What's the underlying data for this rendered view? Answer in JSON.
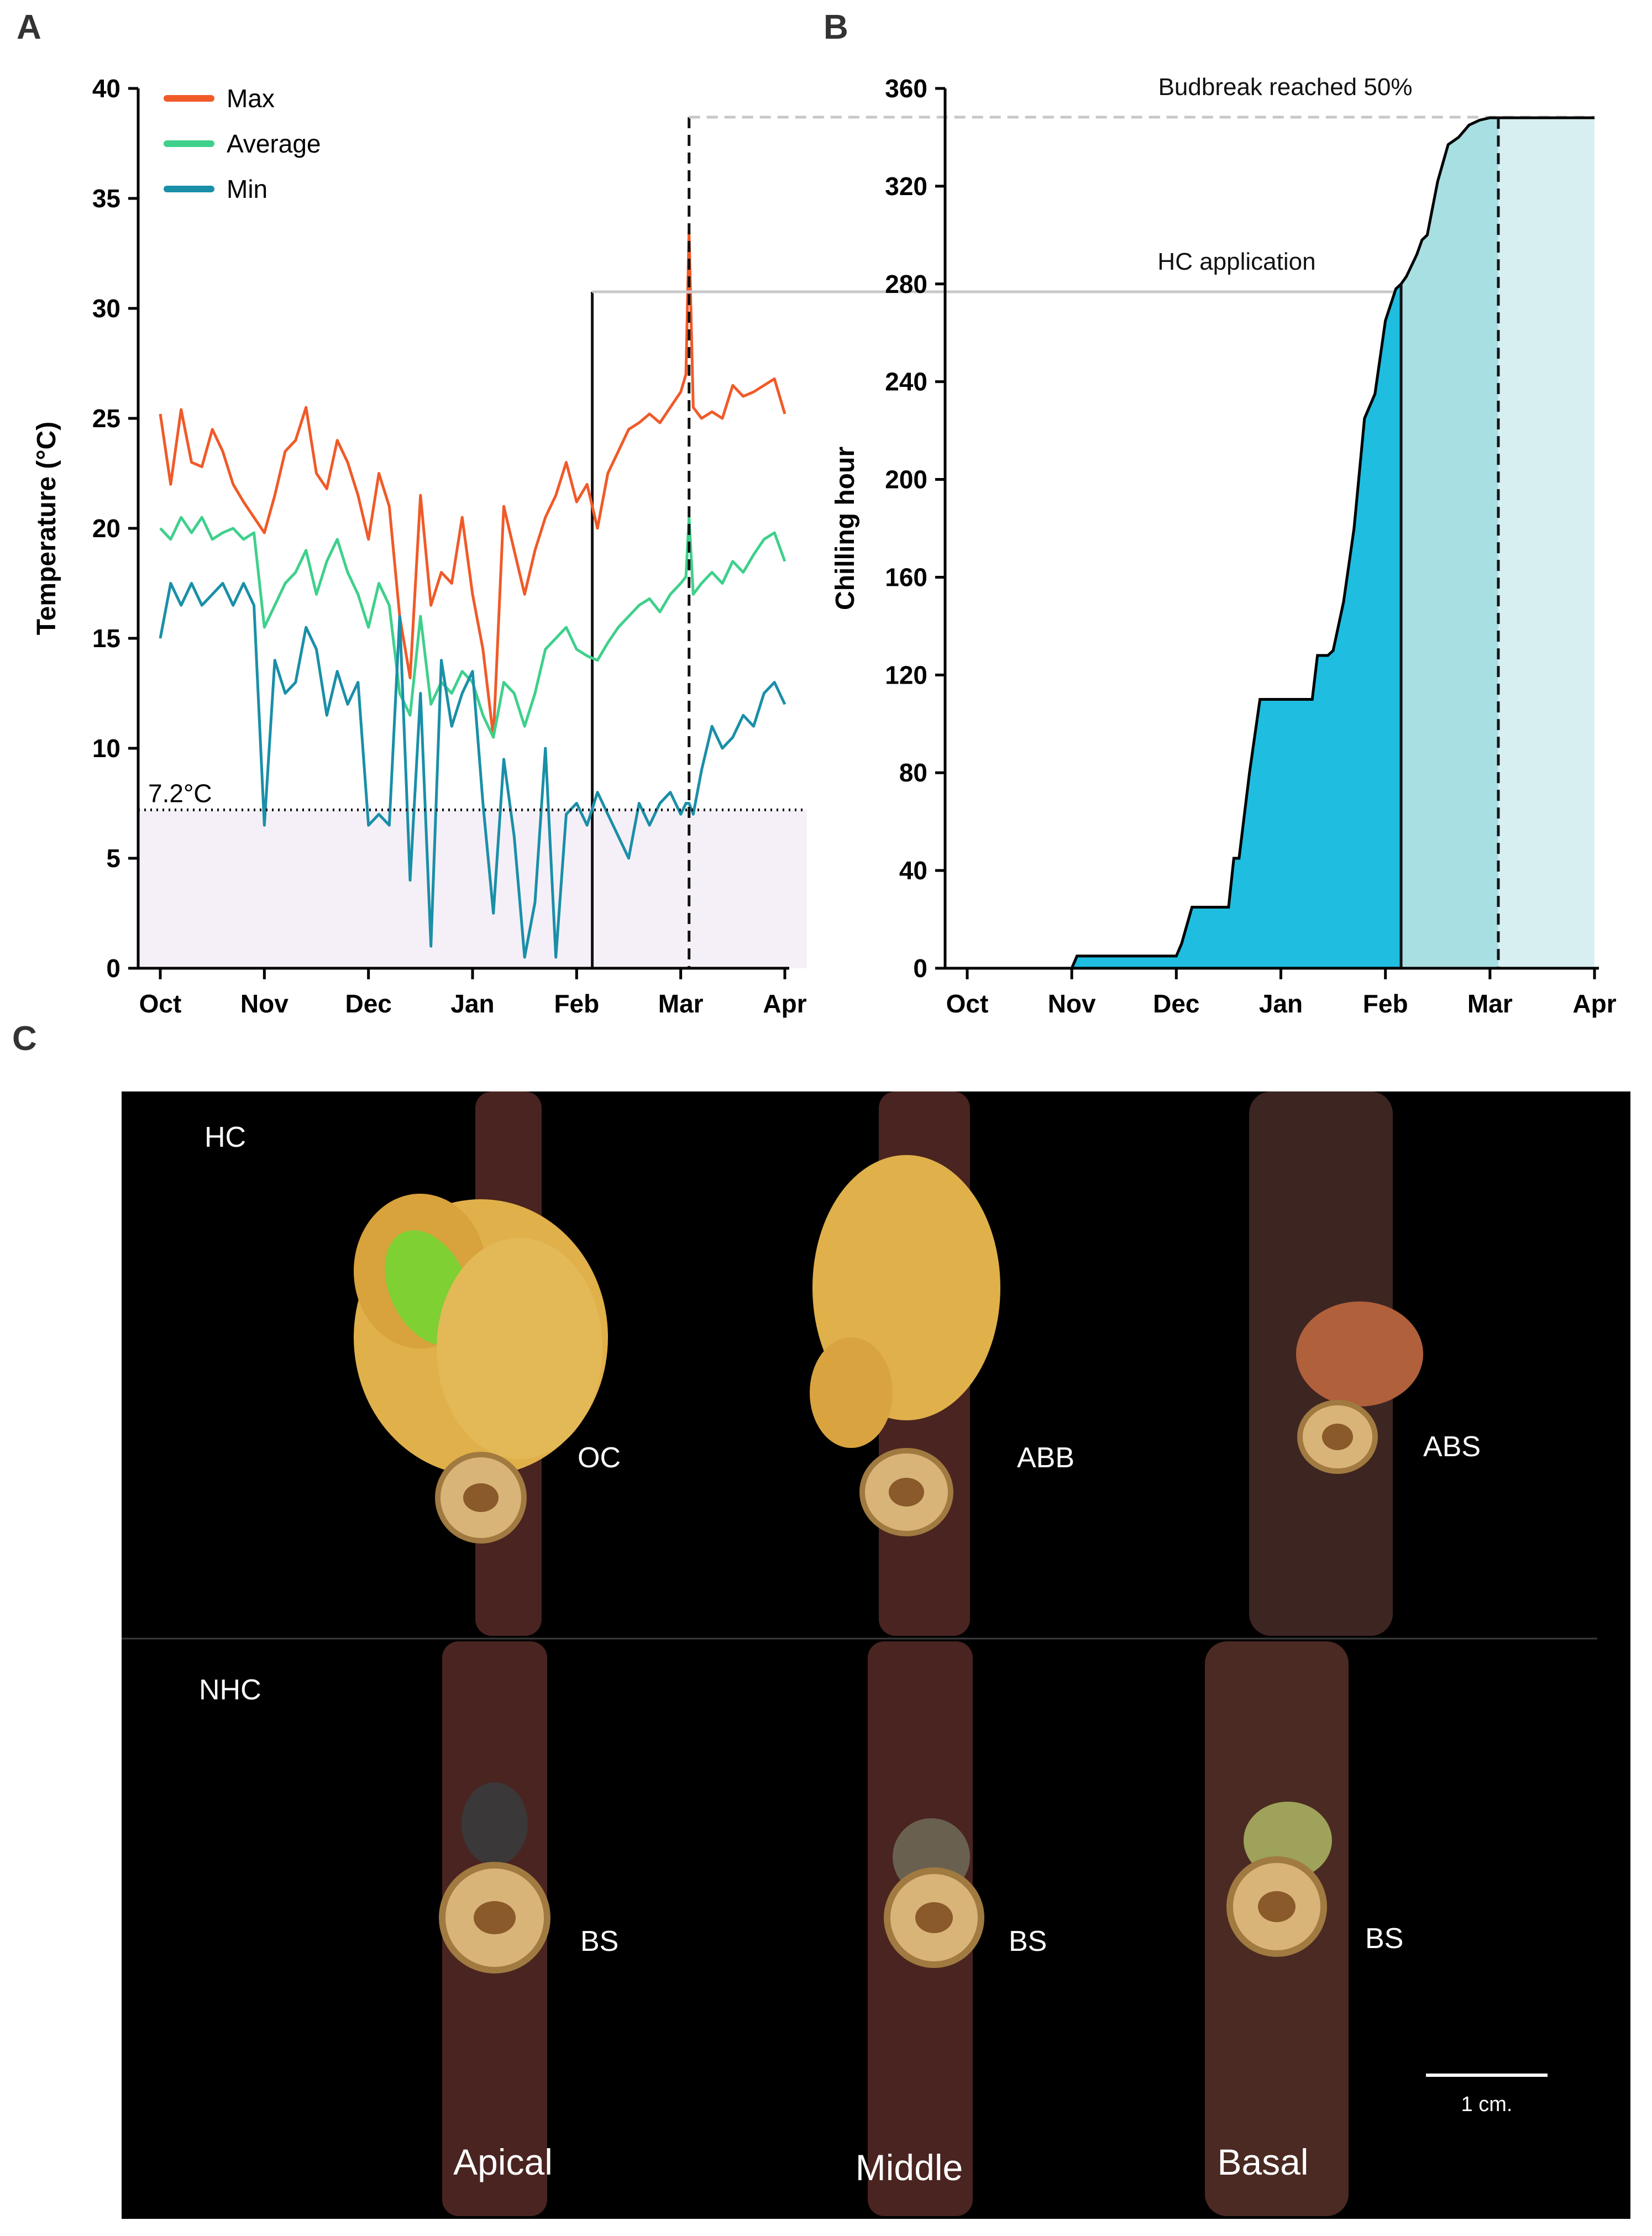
{
  "panels": {
    "a": "A",
    "b": "B",
    "c": "C"
  },
  "chart_data": [
    {
      "type": "line",
      "panel": "A",
      "ylabel": "Temperature (°C)",
      "xlabel": "",
      "ylim": [
        0,
        40
      ],
      "yticks": [
        "0",
        "5",
        "10",
        "15",
        "20",
        "25",
        "30",
        "35",
        "40"
      ],
      "xticks": [
        "Oct",
        "Nov",
        "Dec",
        "Jan",
        "Feb",
        "Mar",
        "Apr"
      ],
      "threshold": {
        "value": 7.2,
        "label": "7.2°C"
      },
      "markers": {
        "hc_application_month": 4.15,
        "budbreak_month": 5.08
      },
      "legend_position": "top-left",
      "colors": {
        "Max": "#f05a28",
        "Average": "#3fd08c",
        "Min": "#1a8fa8",
        "threshold_fill": "#f5f0f7"
      },
      "series": [
        {
          "name": "Max",
          "x": [
            0,
            0.1,
            0.2,
            0.3,
            0.4,
            0.5,
            0.6,
            0.7,
            0.8,
            0.9,
            1.0,
            1.1,
            1.2,
            1.3,
            1.4,
            1.5,
            1.6,
            1.7,
            1.8,
            1.9,
            2.0,
            2.1,
            2.2,
            2.3,
            2.4,
            2.5,
            2.6,
            2.7,
            2.8,
            2.9,
            3.0,
            3.1,
            3.2,
            3.3,
            3.4,
            3.5,
            3.6,
            3.7,
            3.8,
            3.9,
            4.0,
            4.1,
            4.2,
            4.3,
            4.4,
            4.5,
            4.6,
            4.7,
            4.8,
            4.9,
            5.0,
            5.05,
            5.08,
            5.12,
            5.2,
            5.3,
            5.4,
            5.5,
            5.6,
            5.7,
            5.8,
            5.9,
            6.0
          ],
          "values": [
            25.2,
            22.0,
            25.4,
            23.0,
            22.8,
            24.5,
            23.5,
            22.0,
            21.2,
            20.5,
            19.8,
            21.5,
            23.5,
            24.0,
            25.5,
            22.5,
            21.8,
            24.0,
            23.0,
            21.5,
            19.5,
            22.5,
            21.0,
            16.0,
            13.2,
            21.5,
            16.5,
            18.0,
            17.5,
            20.5,
            17.0,
            14.5,
            10.5,
            21.0,
            19.0,
            17.0,
            19.0,
            20.5,
            21.5,
            23.0,
            21.2,
            22.0,
            20.0,
            22.5,
            23.5,
            24.5,
            24.8,
            25.2,
            24.8,
            25.5,
            26.2,
            27.0,
            33.5,
            25.5,
            25.0,
            25.3,
            25.0,
            26.5,
            26.0,
            26.2,
            26.5,
            26.8,
            25.2
          ]
        },
        {
          "name": "Average",
          "x": [
            0,
            0.1,
            0.2,
            0.3,
            0.4,
            0.5,
            0.6,
            0.7,
            0.8,
            0.9,
            1.0,
            1.1,
            1.2,
            1.3,
            1.4,
            1.5,
            1.6,
            1.7,
            1.8,
            1.9,
            2.0,
            2.1,
            2.2,
            2.3,
            2.4,
            2.5,
            2.6,
            2.7,
            2.8,
            2.9,
            3.0,
            3.1,
            3.2,
            3.3,
            3.4,
            3.5,
            3.6,
            3.7,
            3.8,
            3.9,
            4.0,
            4.1,
            4.2,
            4.3,
            4.4,
            4.5,
            4.6,
            4.7,
            4.8,
            4.9,
            5.0,
            5.05,
            5.08,
            5.12,
            5.2,
            5.3,
            5.4,
            5.5,
            5.6,
            5.7,
            5.8,
            5.9,
            6.0
          ],
          "values": [
            20.0,
            19.5,
            20.5,
            19.8,
            20.5,
            19.5,
            19.8,
            20.0,
            19.5,
            19.8,
            15.5,
            16.5,
            17.5,
            18.0,
            19.0,
            17.0,
            18.5,
            19.5,
            18.0,
            17.0,
            15.5,
            17.5,
            16.5,
            12.5,
            11.5,
            16.0,
            12.0,
            13.0,
            12.5,
            13.5,
            13.0,
            11.5,
            10.5,
            13.0,
            12.5,
            11.0,
            12.5,
            14.5,
            15.0,
            15.5,
            14.5,
            14.2,
            14.0,
            14.8,
            15.5,
            16.0,
            16.5,
            16.8,
            16.2,
            17.0,
            17.5,
            17.8,
            20.5,
            17.0,
            17.5,
            18.0,
            17.5,
            18.5,
            18.0,
            18.8,
            19.5,
            19.8,
            18.5
          ]
        },
        {
          "name": "Min",
          "x": [
            0,
            0.1,
            0.2,
            0.3,
            0.4,
            0.5,
            0.6,
            0.7,
            0.8,
            0.9,
            1.0,
            1.1,
            1.2,
            1.3,
            1.4,
            1.5,
            1.6,
            1.7,
            1.8,
            1.9,
            2.0,
            2.1,
            2.2,
            2.3,
            2.4,
            2.5,
            2.6,
            2.7,
            2.8,
            2.9,
            3.0,
            3.1,
            3.2,
            3.3,
            3.4,
            3.5,
            3.6,
            3.7,
            3.8,
            3.9,
            4.0,
            4.1,
            4.2,
            4.3,
            4.4,
            4.5,
            4.6,
            4.7,
            4.8,
            4.9,
            5.0,
            5.05,
            5.08,
            5.12,
            5.2,
            5.3,
            5.4,
            5.5,
            5.6,
            5.7,
            5.8,
            5.9,
            6.0
          ],
          "values": [
            15.0,
            17.5,
            16.5,
            17.5,
            16.5,
            17.0,
            17.5,
            16.5,
            17.5,
            16.5,
            6.5,
            14.0,
            12.5,
            13.0,
            15.5,
            14.5,
            11.5,
            13.5,
            12.0,
            13.0,
            6.5,
            7.0,
            6.5,
            16.0,
            4.0,
            12.5,
            1.0,
            14.0,
            11.0,
            12.5,
            13.5,
            7.5,
            2.5,
            9.5,
            6.0,
            0.5,
            3.0,
            10.0,
            0.5,
            7.0,
            7.5,
            6.5,
            8.0,
            7.0,
            6.0,
            5.0,
            7.5,
            6.5,
            7.5,
            8.0,
            7.0,
            7.5,
            7.5,
            7.0,
            9.0,
            11.0,
            10.0,
            10.5,
            11.5,
            11.0,
            12.5,
            13.0,
            12.0
          ]
        }
      ]
    },
    {
      "type": "area",
      "panel": "B",
      "ylabel": "Chilling hour",
      "xlabel": "",
      "ylim": [
        0,
        360
      ],
      "yticks": [
        "0",
        "40",
        "80",
        "120",
        "160",
        "200",
        "240",
        "280",
        "320",
        "360"
      ],
      "xticks": [
        "Oct",
        "Nov",
        "Dec",
        "Jan",
        "Feb",
        "Mar",
        "Apr"
      ],
      "annotations": {
        "hc": "HC application",
        "budbreak": "Budbreak reached 50%"
      },
      "markers": {
        "hc_application_month": 4.15,
        "budbreak_month": 5.08
      },
      "colors": {
        "fill_pre_hc": "#1fbde0",
        "fill_post_hc": "#a8dfe3",
        "fill_after_budbreak": "#d8eff1",
        "line": "#000000"
      },
      "series": [
        {
          "name": "",
          "x": [
            0,
            1.0,
            1.05,
            2.0,
            2.05,
            2.15,
            2.25,
            2.5,
            2.55,
            2.6,
            2.7,
            2.8,
            2.95,
            3.0,
            3.3,
            3.35,
            3.45,
            3.5,
            3.6,
            3.7,
            3.8,
            3.9,
            4.0,
            4.1,
            4.15,
            4.2,
            4.3,
            4.35,
            4.4,
            4.5,
            4.6,
            4.7,
            4.8,
            4.9,
            5.0,
            5.08,
            5.2,
            6.0
          ],
          "values": [
            0,
            0,
            5,
            5,
            10,
            25,
            25,
            25,
            45,
            45,
            80,
            110,
            110,
            110,
            110,
            128,
            128,
            130,
            150,
            180,
            225,
            235,
            265,
            278,
            280,
            283,
            292,
            298,
            300,
            322,
            337,
            340,
            345,
            347,
            348,
            348,
            348,
            348
          ]
        }
      ]
    }
  ],
  "photo": {
    "background": "#000000",
    "rows": [
      "HC",
      "NHC"
    ],
    "columns": [
      "Apical",
      "Middle",
      "Basal"
    ],
    "stage_labels": {
      "hc": [
        "OC",
        "ABB",
        "ABS"
      ],
      "nhc": [
        "BS",
        "BS",
        "BS"
      ]
    },
    "scale_bar": "1 cm."
  }
}
